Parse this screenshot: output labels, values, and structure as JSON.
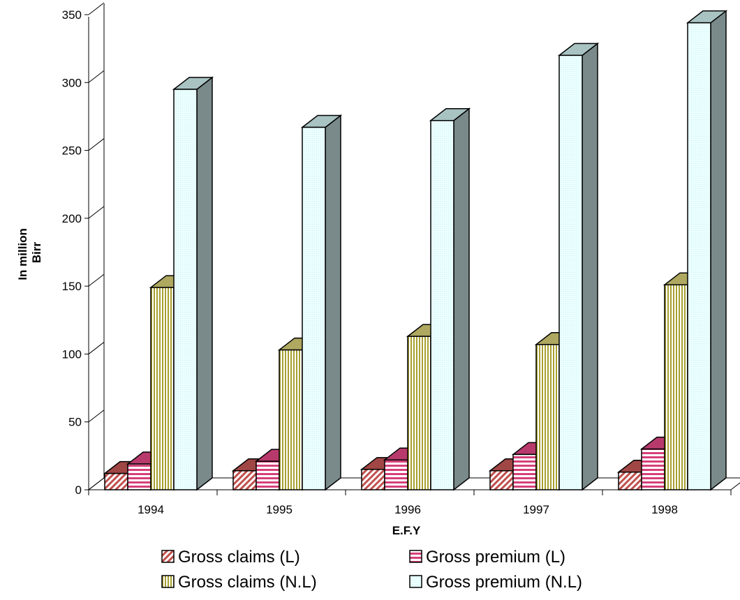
{
  "chart_data": {
    "type": "bar",
    "categories": [
      "1994",
      "1995",
      "1996",
      "1997",
      "1998"
    ],
    "series": [
      {
        "name": "Gross claims (L)",
        "values": [
          12,
          14,
          15,
          14,
          13
        ],
        "colors": {
          "front": "#c0504d",
          "side": "#8a3a38",
          "top": "#a04644"
        }
      },
      {
        "name": "Gross premium (L)",
        "values": [
          19,
          21,
          22,
          26,
          30
        ],
        "colors": {
          "front": "#d6407a",
          "side": "#9a3058",
          "top": "#b83a6c"
        }
      },
      {
        "name": "Gross claims (N.L)",
        "values": [
          149,
          103,
          113,
          107,
          151
        ],
        "colors": {
          "front": "#a7a030",
          "side": "#7f7a22",
          "top": "#aea860"
        }
      },
      {
        "name": "Gross premium (N.L)",
        "values": [
          295,
          267,
          272,
          320,
          344
        ],
        "colors": {
          "front": "#eaffff",
          "side": "#7a8a8a",
          "top": "#a9c3c3"
        }
      }
    ],
    "xlabel": "E.F.Y",
    "ylabel": "In million\nBirr",
    "ylabel_lines": [
      "In million",
      "Birr"
    ],
    "ylim": [
      0,
      350
    ],
    "yticks": [
      0,
      50,
      100,
      150,
      200,
      250,
      300,
      350
    ],
    "grid": false,
    "legend_position": "bottom",
    "style": "3d-clustered-column"
  }
}
